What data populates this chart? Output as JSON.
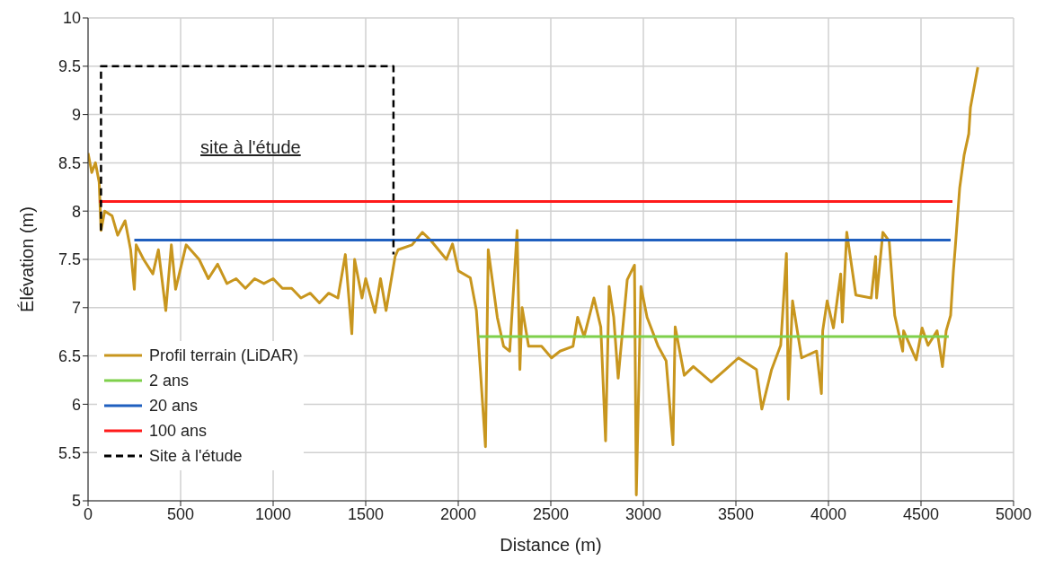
{
  "chart_data": {
    "type": "line",
    "xlabel": "Distance (m)",
    "ylabel": "Élévation (m)",
    "xlim": [
      0,
      5000
    ],
    "xticks": [
      0,
      500,
      1000,
      1500,
      2000,
      2500,
      3000,
      3500,
      4000,
      4500,
      5000
    ],
    "ylim": [
      5,
      10
    ],
    "yticks": [
      5,
      5.5,
      6,
      6.5,
      7,
      7.5,
      8,
      8.5,
      9,
      9.5,
      10
    ],
    "grid": true,
    "legend": "bottom left",
    "marker": "none",
    "annotations": [
      "site à l'étude"
    ],
    "series": [
      {
        "name": "Profil terrain (LiDAR)",
        "color": "#c8961e",
        "line_style": "solid",
        "x": [
          0,
          20,
          40,
          60,
          70,
          90,
          130,
          160,
          200,
          230,
          250,
          260,
          300,
          350,
          380,
          420,
          450,
          473,
          530,
          600,
          650,
          700,
          750,
          800,
          850,
          900,
          950,
          1000,
          1050,
          1100,
          1150,
          1200,
          1250,
          1300,
          1350,
          1390,
          1425,
          1440,
          1480,
          1500,
          1550,
          1580,
          1610,
          1659,
          1675,
          1750,
          1806,
          1850,
          1936,
          1969,
          2001,
          2065,
          2098,
          2147,
          2162,
          2211,
          2245,
          2278,
          2318,
          2333,
          2345,
          2380,
          2450,
          2504,
          2550,
          2620,
          2645,
          2680,
          2733,
          2770,
          2796,
          2815,
          2840,
          2864,
          2913,
          2952,
          2962,
          2987,
          3020,
          3080,
          3123,
          3160,
          3172,
          3221,
          3270,
          3367,
          3450,
          3514,
          3611,
          3640,
          3693,
          3742,
          3773,
          3783,
          3806,
          3855,
          3936,
          3962,
          3969,
          3993,
          4027,
          4066,
          4075,
          4099,
          4148,
          4231,
          4255,
          4260,
          4294,
          4328,
          4358,
          4401,
          4406,
          4474,
          4506,
          4538,
          4587,
          4616,
          4636,
          4660,
          4675,
          4685,
          4709,
          4733,
          4758,
          4767,
          4807
        ],
        "values": [
          8.6,
          8.4,
          8.5,
          8.3,
          7.8,
          8.0,
          7.95,
          7.75,
          7.9,
          7.6,
          7.19,
          7.65,
          7.5,
          7.35,
          7.6,
          6.97,
          7.65,
          7.19,
          7.65,
          7.5,
          7.3,
          7.45,
          7.25,
          7.3,
          7.2,
          7.3,
          7.25,
          7.3,
          7.2,
          7.2,
          7.1,
          7.15,
          7.05,
          7.15,
          7.1,
          7.55,
          6.73,
          7.5,
          7.1,
          7.3,
          6.95,
          7.3,
          6.97,
          7.53,
          7.6,
          7.65,
          7.78,
          7.7,
          7.5,
          7.66,
          7.38,
          7.31,
          6.97,
          5.56,
          7.6,
          6.9,
          6.6,
          6.55,
          7.8,
          6.36,
          7.0,
          6.6,
          6.6,
          6.48,
          6.55,
          6.6,
          6.9,
          6.7,
          7.1,
          6.8,
          5.62,
          7.22,
          6.9,
          6.27,
          7.29,
          7.44,
          5.06,
          7.22,
          6.9,
          6.6,
          6.45,
          5.58,
          6.8,
          6.3,
          6.39,
          6.23,
          6.37,
          6.48,
          6.36,
          5.95,
          6.36,
          6.61,
          7.56,
          6.05,
          7.07,
          6.48,
          6.55,
          6.11,
          6.76,
          7.07,
          6.79,
          7.35,
          6.85,
          7.78,
          7.13,
          7.1,
          7.53,
          7.1,
          7.78,
          7.69,
          6.92,
          6.55,
          6.76,
          6.46,
          6.79,
          6.61,
          6.76,
          6.39,
          6.76,
          6.92,
          7.38,
          7.62,
          8.24,
          8.58,
          8.8,
          9.07,
          9.49
        ]
      },
      {
        "name": "2 ans",
        "color": "#7ed04b",
        "line_style": "solid",
        "x": [
          2110,
          4650
        ],
        "values": [
          6.7,
          6.7
        ]
      },
      {
        "name": "20 ans",
        "color": "#1f5fbf",
        "line_style": "solid",
        "x": [
          250,
          4660
        ],
        "values": [
          7.7,
          7.7
        ]
      },
      {
        "name": "100 ans",
        "color": "#ff1a1a",
        "line_style": "solid",
        "x": [
          60,
          4670
        ],
        "values": [
          8.1,
          8.1
        ]
      },
      {
        "name": "Site à l'étude",
        "color": "#000000",
        "line_style": "dashed",
        "x": [
          70,
          70,
          1650,
          1650
        ],
        "values": [
          7.8,
          9.5,
          9.5,
          7.55
        ]
      }
    ]
  }
}
